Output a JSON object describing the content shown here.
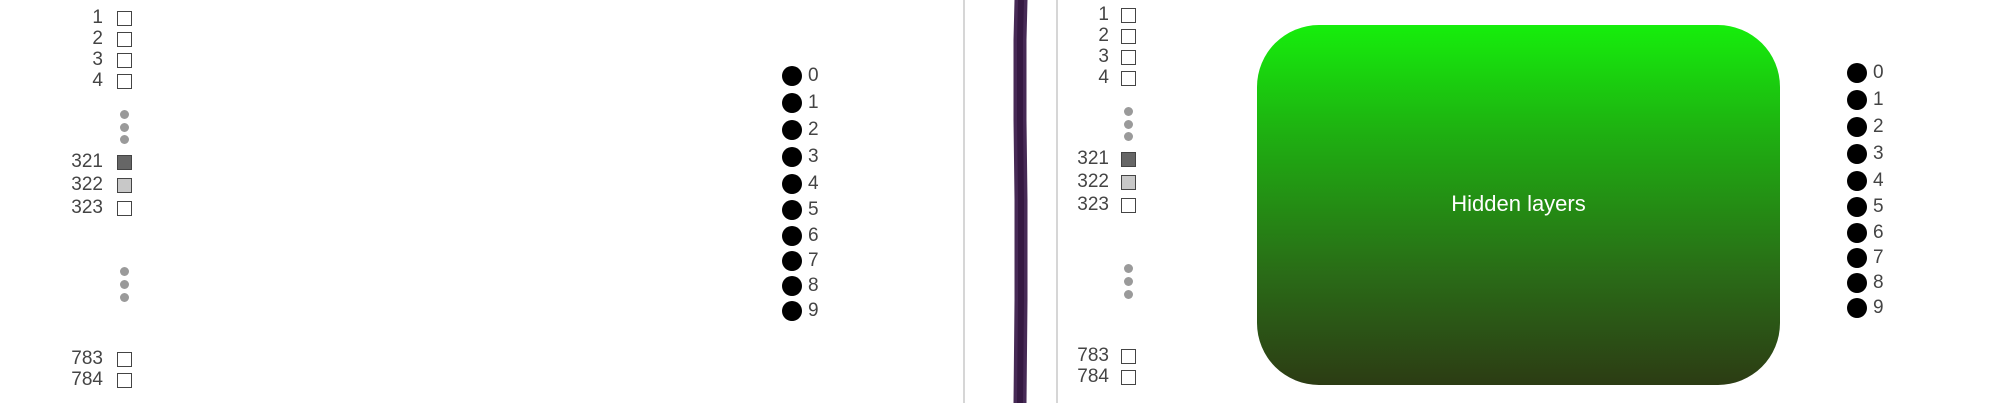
{
  "input_labels": [
    "1",
    "2",
    "3",
    "4",
    "321",
    "322",
    "323",
    "783",
    "784"
  ],
  "input_box_colors": [
    "#ffffff",
    "#ffffff",
    "#ffffff",
    "#ffffff",
    "#666666",
    "#c8c8c8",
    "#ffffff",
    "#ffffff",
    "#ffffff"
  ],
  "output_labels": [
    "0",
    "1",
    "2",
    "3",
    "4",
    "5",
    "6",
    "7",
    "8",
    "9"
  ],
  "hidden_box": {
    "label": "Hidden layers",
    "colors": [
      "#16ee0c",
      "#2c3c14"
    ]
  },
  "stroke_color": "#3d1f4d"
}
